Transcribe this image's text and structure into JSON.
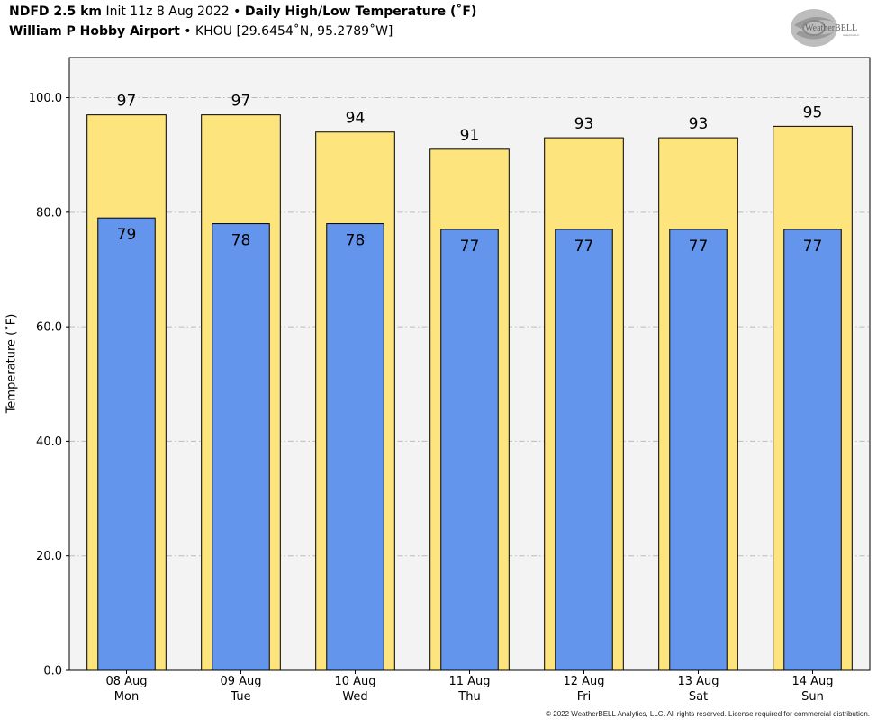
{
  "header": {
    "line1_model": "NDFD 2.5 km",
    "line1_init": "Init 11z 8 Aug 2022",
    "line1_sep": "•",
    "line1_title": "Daily High/Low Temperature (˚F)",
    "line2_station": "William P Hobby Airport",
    "line2_sep": "•",
    "line2_location": "KHOU [29.6454˚N, 95.2789˚W]"
  },
  "logo": {
    "text": "WeatherBELL",
    "sub": "Analytics LLC"
  },
  "copyright": "© 2022 WeatherBELL Analytics, LLC. All rights reserved. License required for commercial distribution.",
  "colors": {
    "high_fill": "#fde47d",
    "low_fill": "#6495ec",
    "plot_bg": "#f4f3f4",
    "grid": "#bbbbbb"
  },
  "chart_data": {
    "type": "bar",
    "categories": [
      "08 Aug\nMon",
      "09 Aug\nTue",
      "10 Aug\nWed",
      "11 Aug\nThu",
      "12 Aug\nFri",
      "13 Aug\nSat",
      "14 Aug\nSun"
    ],
    "series": [
      {
        "name": "High",
        "values": [
          97,
          97,
          94,
          91,
          93,
          93,
          95
        ]
      },
      {
        "name": "Low",
        "values": [
          79,
          78,
          78,
          77,
          77,
          77,
          77
        ]
      }
    ],
    "ylabel": "Temperature (˚F)",
    "ylim": [
      0,
      107
    ],
    "yticks": [
      "0.0",
      "20.0",
      "40.0",
      "60.0",
      "80.0",
      "100.0"
    ],
    "ytick_values": [
      0,
      20,
      40,
      60,
      80,
      100
    ],
    "grid": true
  }
}
